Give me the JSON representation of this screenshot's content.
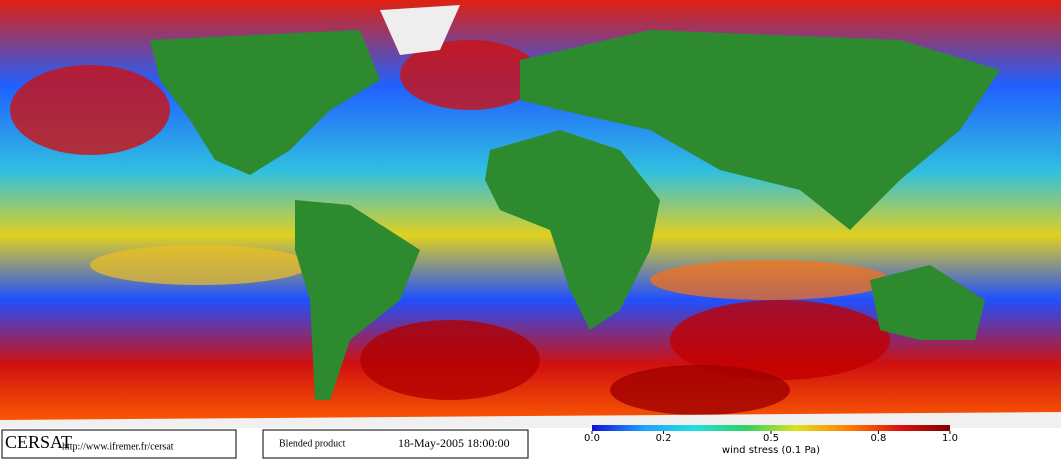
{
  "footer": {
    "logo": "CERSAT",
    "url": "http://www.ifremer.fr/cersat",
    "product": "Blended product",
    "date": "18-May-2005 18:00:00"
  },
  "colorbar": {
    "label": "wind stress (0.1 Pa)",
    "lim": [
      0,
      1
    ],
    "ticks": [
      {
        "value": 0,
        "label": "0.0"
      },
      {
        "value": 0.2,
        "label": "0.2"
      },
      {
        "value": 0.5,
        "label": "0.5"
      },
      {
        "value": 0.8,
        "label": "0.8"
      },
      {
        "value": 1,
        "label": "1.0"
      }
    ],
    "colors": [
      "#1010e0",
      "#20a0ff",
      "#20e0e0",
      "#30d060",
      "#e0e020",
      "#ff8000",
      "#e01010",
      "#800000"
    ]
  }
}
